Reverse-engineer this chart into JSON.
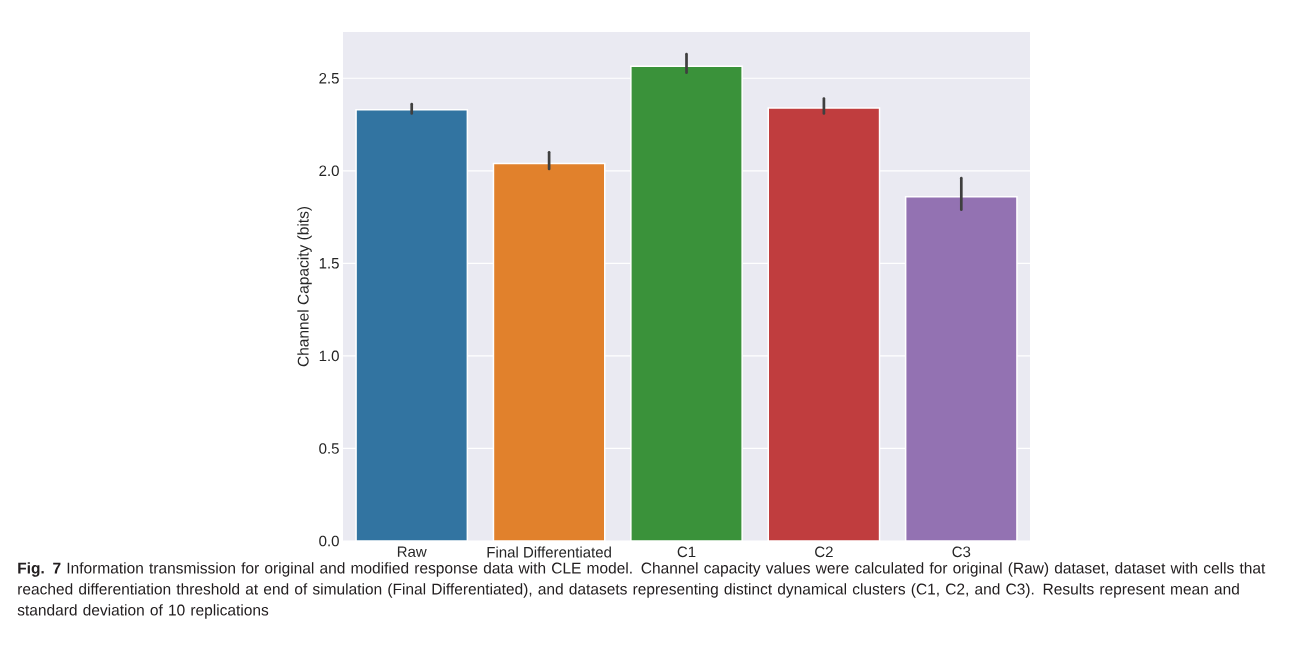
{
  "chart_data": {
    "type": "bar",
    "ylabel": "Channel Capacity (bits)",
    "categories": [
      "Raw",
      "Final Differentiated",
      "C1",
      "C2",
      "C3"
    ],
    "values": [
      2.33,
      2.04,
      2.565,
      2.34,
      1.86
    ],
    "colors": [
      "#3274a1",
      "#e1812c",
      "#3a923a",
      "#c03d3e",
      "#9372b2"
    ],
    "errors": [
      [
        2.31,
        2.36
      ],
      [
        2.01,
        2.1
      ],
      [
        2.53,
        2.63
      ],
      [
        2.31,
        2.39
      ],
      [
        1.79,
        1.96
      ]
    ],
    "ylim": [
      0,
      2.75
    ],
    "yticks": [
      {
        "value": 0,
        "label": "0.0"
      },
      {
        "value": 0.5,
        "label": "0.5"
      },
      {
        "value": 1,
        "label": "1.0"
      },
      {
        "value": 1.5,
        "label": "1.5"
      },
      {
        "value": 2,
        "label": "2.0"
      },
      {
        "value": 2.5,
        "label": "2.5"
      }
    ],
    "grid": "y",
    "annotations": [
      "**Fig. 7** Information transmission for original and modified response data with CLE model. Channel capacity values were calculated for original (Raw) dataset, dataset with cells that reached differentiation threshold at end of simulation (Final Differentiated), and datasets representing distinct dynamical clusters (C1, C2, and C3). Results represent mean and standard deviation of 10 replications"
    ]
  }
}
